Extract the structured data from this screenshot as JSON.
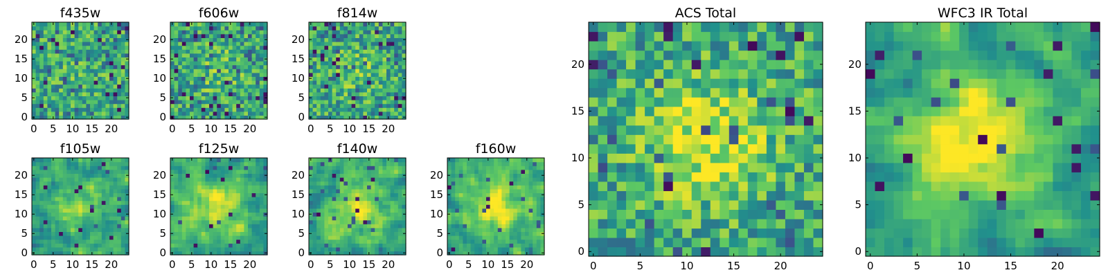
{
  "chart_data": {
    "type": "heatmap",
    "colormap": "viridis",
    "colormap_stops": [
      "#440154",
      "#3b528b",
      "#21918c",
      "#5ec962",
      "#fde725"
    ],
    "panels": [
      {
        "title": "f435w",
        "grid_size": 25,
        "xticks": [
          0,
          5,
          10,
          15,
          20
        ],
        "yticks": [
          0,
          5,
          10,
          15,
          20
        ],
        "seed": 11,
        "smooth": 0,
        "peak": 0.05,
        "outlier_rate": 0.04
      },
      {
        "title": "f606w",
        "grid_size": 25,
        "xticks": [
          0,
          5,
          10,
          15,
          20
        ],
        "yticks": [
          0,
          5,
          10,
          15,
          20
        ],
        "seed": 23,
        "smooth": 0,
        "peak": 0.12,
        "outlier_rate": 0.04
      },
      {
        "title": "f814w",
        "grid_size": 25,
        "xticks": [
          0,
          5,
          10,
          15,
          20
        ],
        "yticks": [
          0,
          5,
          10,
          15,
          20
        ],
        "seed": 37,
        "smooth": 0,
        "peak": 0.12,
        "outlier_rate": 0.04
      },
      {
        "title": "f105w",
        "grid_size": 25,
        "xticks": [
          0,
          5,
          10,
          15,
          20
        ],
        "yticks": [
          0,
          5,
          10,
          15,
          20
        ],
        "seed": 41,
        "smooth": 1,
        "peak": 0.25,
        "outlier_rate": 0.015
      },
      {
        "title": "f125w",
        "grid_size": 25,
        "xticks": [
          0,
          5,
          10,
          15,
          20
        ],
        "yticks": [
          0,
          5,
          10,
          15,
          20
        ],
        "seed": 53,
        "smooth": 1,
        "peak": 0.3,
        "outlier_rate": 0.015
      },
      {
        "title": "f140w",
        "grid_size": 25,
        "xticks": [
          0,
          5,
          10,
          15,
          20
        ],
        "yticks": [
          0,
          5,
          10,
          15,
          20
        ],
        "seed": 67,
        "smooth": 1,
        "peak": 0.3,
        "outlier_rate": 0.015
      },
      {
        "title": "f160w",
        "grid_size": 25,
        "xticks": [
          0,
          5,
          10,
          15,
          20
        ],
        "yticks": [
          0,
          5,
          10,
          15,
          20
        ],
        "seed": 79,
        "smooth": 1,
        "peak": 0.4,
        "outlier_rate": 0.02
      },
      {
        "title": "ACS Total",
        "grid_size": 25,
        "xticks": [
          0,
          5,
          10,
          15,
          20
        ],
        "yticks": [
          0,
          5,
          10,
          15,
          20
        ],
        "seed": 97,
        "smooth": 0,
        "peak": 0.35,
        "outlier_rate": 0.025
      },
      {
        "title": "WFC3 IR Total",
        "grid_size": 25,
        "xticks": [
          0,
          5,
          10,
          15,
          20
        ],
        "yticks": [
          0,
          5,
          10,
          15,
          20
        ],
        "seed": 101,
        "smooth": 1,
        "peak": 0.5,
        "outlier_rate": 0.02
      }
    ]
  }
}
